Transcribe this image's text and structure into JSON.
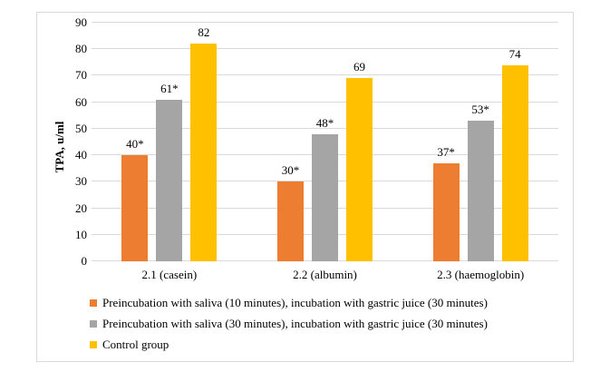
{
  "chart_data": {
    "type": "bar",
    "title": "",
    "xlabel": "",
    "ylabel": "TPA, u/ml",
    "ylim": [
      0,
      90
    ],
    "yticks": [
      0,
      10,
      20,
      30,
      40,
      50,
      60,
      70,
      80,
      90
    ],
    "grid": true,
    "legend_position": "bottom-left",
    "categories": [
      "2.1 (casein)",
      "2.2 (albumin)",
      "2.3 (haemoglobin)"
    ],
    "series": [
      {
        "name": "Preincubation with saliva (10 minutes), incubation with gastric juice (30 minutes)",
        "color": "#ED7D31",
        "values": [
          40,
          30,
          37
        ],
        "labels": [
          "40*",
          "30*",
          "37*"
        ]
      },
      {
        "name": "Preincubation with saliva (30 minutes), incubation with gastric juice (30 minutes)",
        "color": "#A5A5A5",
        "values": [
          61,
          48,
          53
        ],
        "labels": [
          "61*",
          "48*",
          "53*"
        ]
      },
      {
        "name": "Control group",
        "color": "#FFC000",
        "values": [
          82,
          69,
          74
        ],
        "labels": [
          "82",
          "69",
          "74"
        ]
      }
    ],
    "colors": {
      "gridline": "#D9D9D9",
      "frame_border": "#D9D9D9",
      "text": "#000000"
    }
  }
}
